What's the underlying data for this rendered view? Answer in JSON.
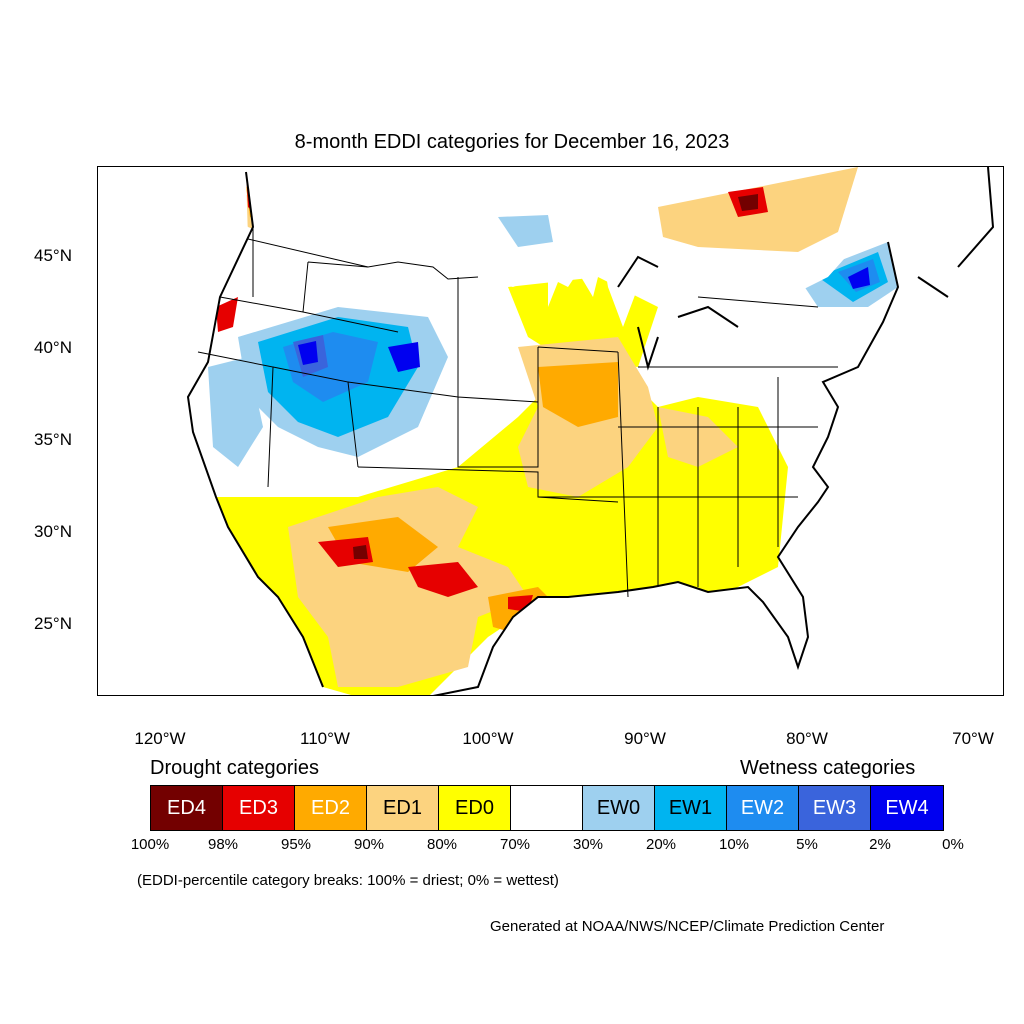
{
  "title": "8-month EDDI categories for December 16, 2023",
  "y_axis_labels": [
    "45°N",
    "40°N",
    "35°N",
    "30°N",
    "25°N"
  ],
  "x_axis_labels": [
    "120°W",
    "110°W",
    "100°W",
    "90°W",
    "80°W",
    "70°W"
  ],
  "legend": {
    "drought_heading": "Drought categories",
    "wetness_heading": "Wetness categories",
    "categories": [
      {
        "label": "ED4",
        "color": "#730000",
        "text_color": "#ffffff"
      },
      {
        "label": "ED3",
        "color": "#e60000",
        "text_color": "#ffffff"
      },
      {
        "label": "ED2",
        "color": "#ffaa00",
        "text_color": "#ffffff"
      },
      {
        "label": "ED1",
        "color": "#fcd37f",
        "text_color": "#000000"
      },
      {
        "label": "ED0",
        "color": "#ffff00",
        "text_color": "#000000"
      },
      {
        "label": "",
        "color": "#ffffff",
        "text_color": "#000000"
      },
      {
        "label": "EW0",
        "color": "#9ed0ef",
        "text_color": "#000000"
      },
      {
        "label": "EW1",
        "color": "#00b4f0",
        "text_color": "#000000"
      },
      {
        "label": "EW2",
        "color": "#1e8cf0",
        "text_color": "#ffffff"
      },
      {
        "label": "EW3",
        "color": "#3a64dc",
        "text_color": "#ffffff"
      },
      {
        "label": "EW4",
        "color": "#0000f0",
        "text_color": "#ffffff"
      }
    ],
    "breaks": [
      "100%",
      "98%",
      "95%",
      "90%",
      "80%",
      "70%",
      "30%",
      "20%",
      "10%",
      "5%",
      "2%",
      "0%"
    ]
  },
  "note": "(EDDI-percentile category breaks: 100% = driest; 0% = wettest)",
  "credit": "Generated at NOAA/NWS/NCEP/Climate Prediction Center"
}
